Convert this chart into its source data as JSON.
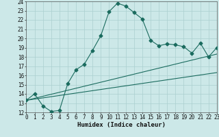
{
  "xlabel": "Humidex (Indice chaleur)",
  "xlim": [
    0,
    23
  ],
  "ylim": [
    12,
    24
  ],
  "yticks": [
    12,
    13,
    14,
    15,
    16,
    17,
    18,
    19,
    20,
    21,
    22,
    23,
    24
  ],
  "xticks": [
    0,
    1,
    2,
    3,
    4,
    5,
    6,
    7,
    8,
    9,
    10,
    11,
    12,
    13,
    14,
    15,
    16,
    17,
    18,
    19,
    20,
    21,
    22,
    23
  ],
  "bg_color": "#cce8e8",
  "grid_color": "#aacfcf",
  "line_color": "#1a6b5e",
  "line1_x": [
    0,
    1,
    2,
    3,
    4,
    5,
    6,
    7,
    8,
    9,
    10,
    11,
    12,
    13,
    14,
    15,
    16,
    17,
    18,
    19,
    20,
    21,
    22,
    23
  ],
  "line1_y": [
    13.3,
    14.0,
    12.7,
    12.1,
    12.2,
    15.1,
    16.6,
    17.2,
    18.7,
    20.3,
    22.9,
    23.8,
    23.5,
    22.8,
    22.1,
    19.8,
    19.2,
    19.4,
    19.3,
    19.1,
    18.4,
    19.5,
    18.0,
    19.0
  ],
  "line2_x": [
    0,
    23
  ],
  "line2_y": [
    13.3,
    16.3
  ],
  "line3_x": [
    0,
    23
  ],
  "line3_y": [
    13.3,
    18.3
  ],
  "marker": "D",
  "marker_size": 2.5,
  "tick_fontsize": 5.5,
  "xlabel_fontsize": 6.5
}
